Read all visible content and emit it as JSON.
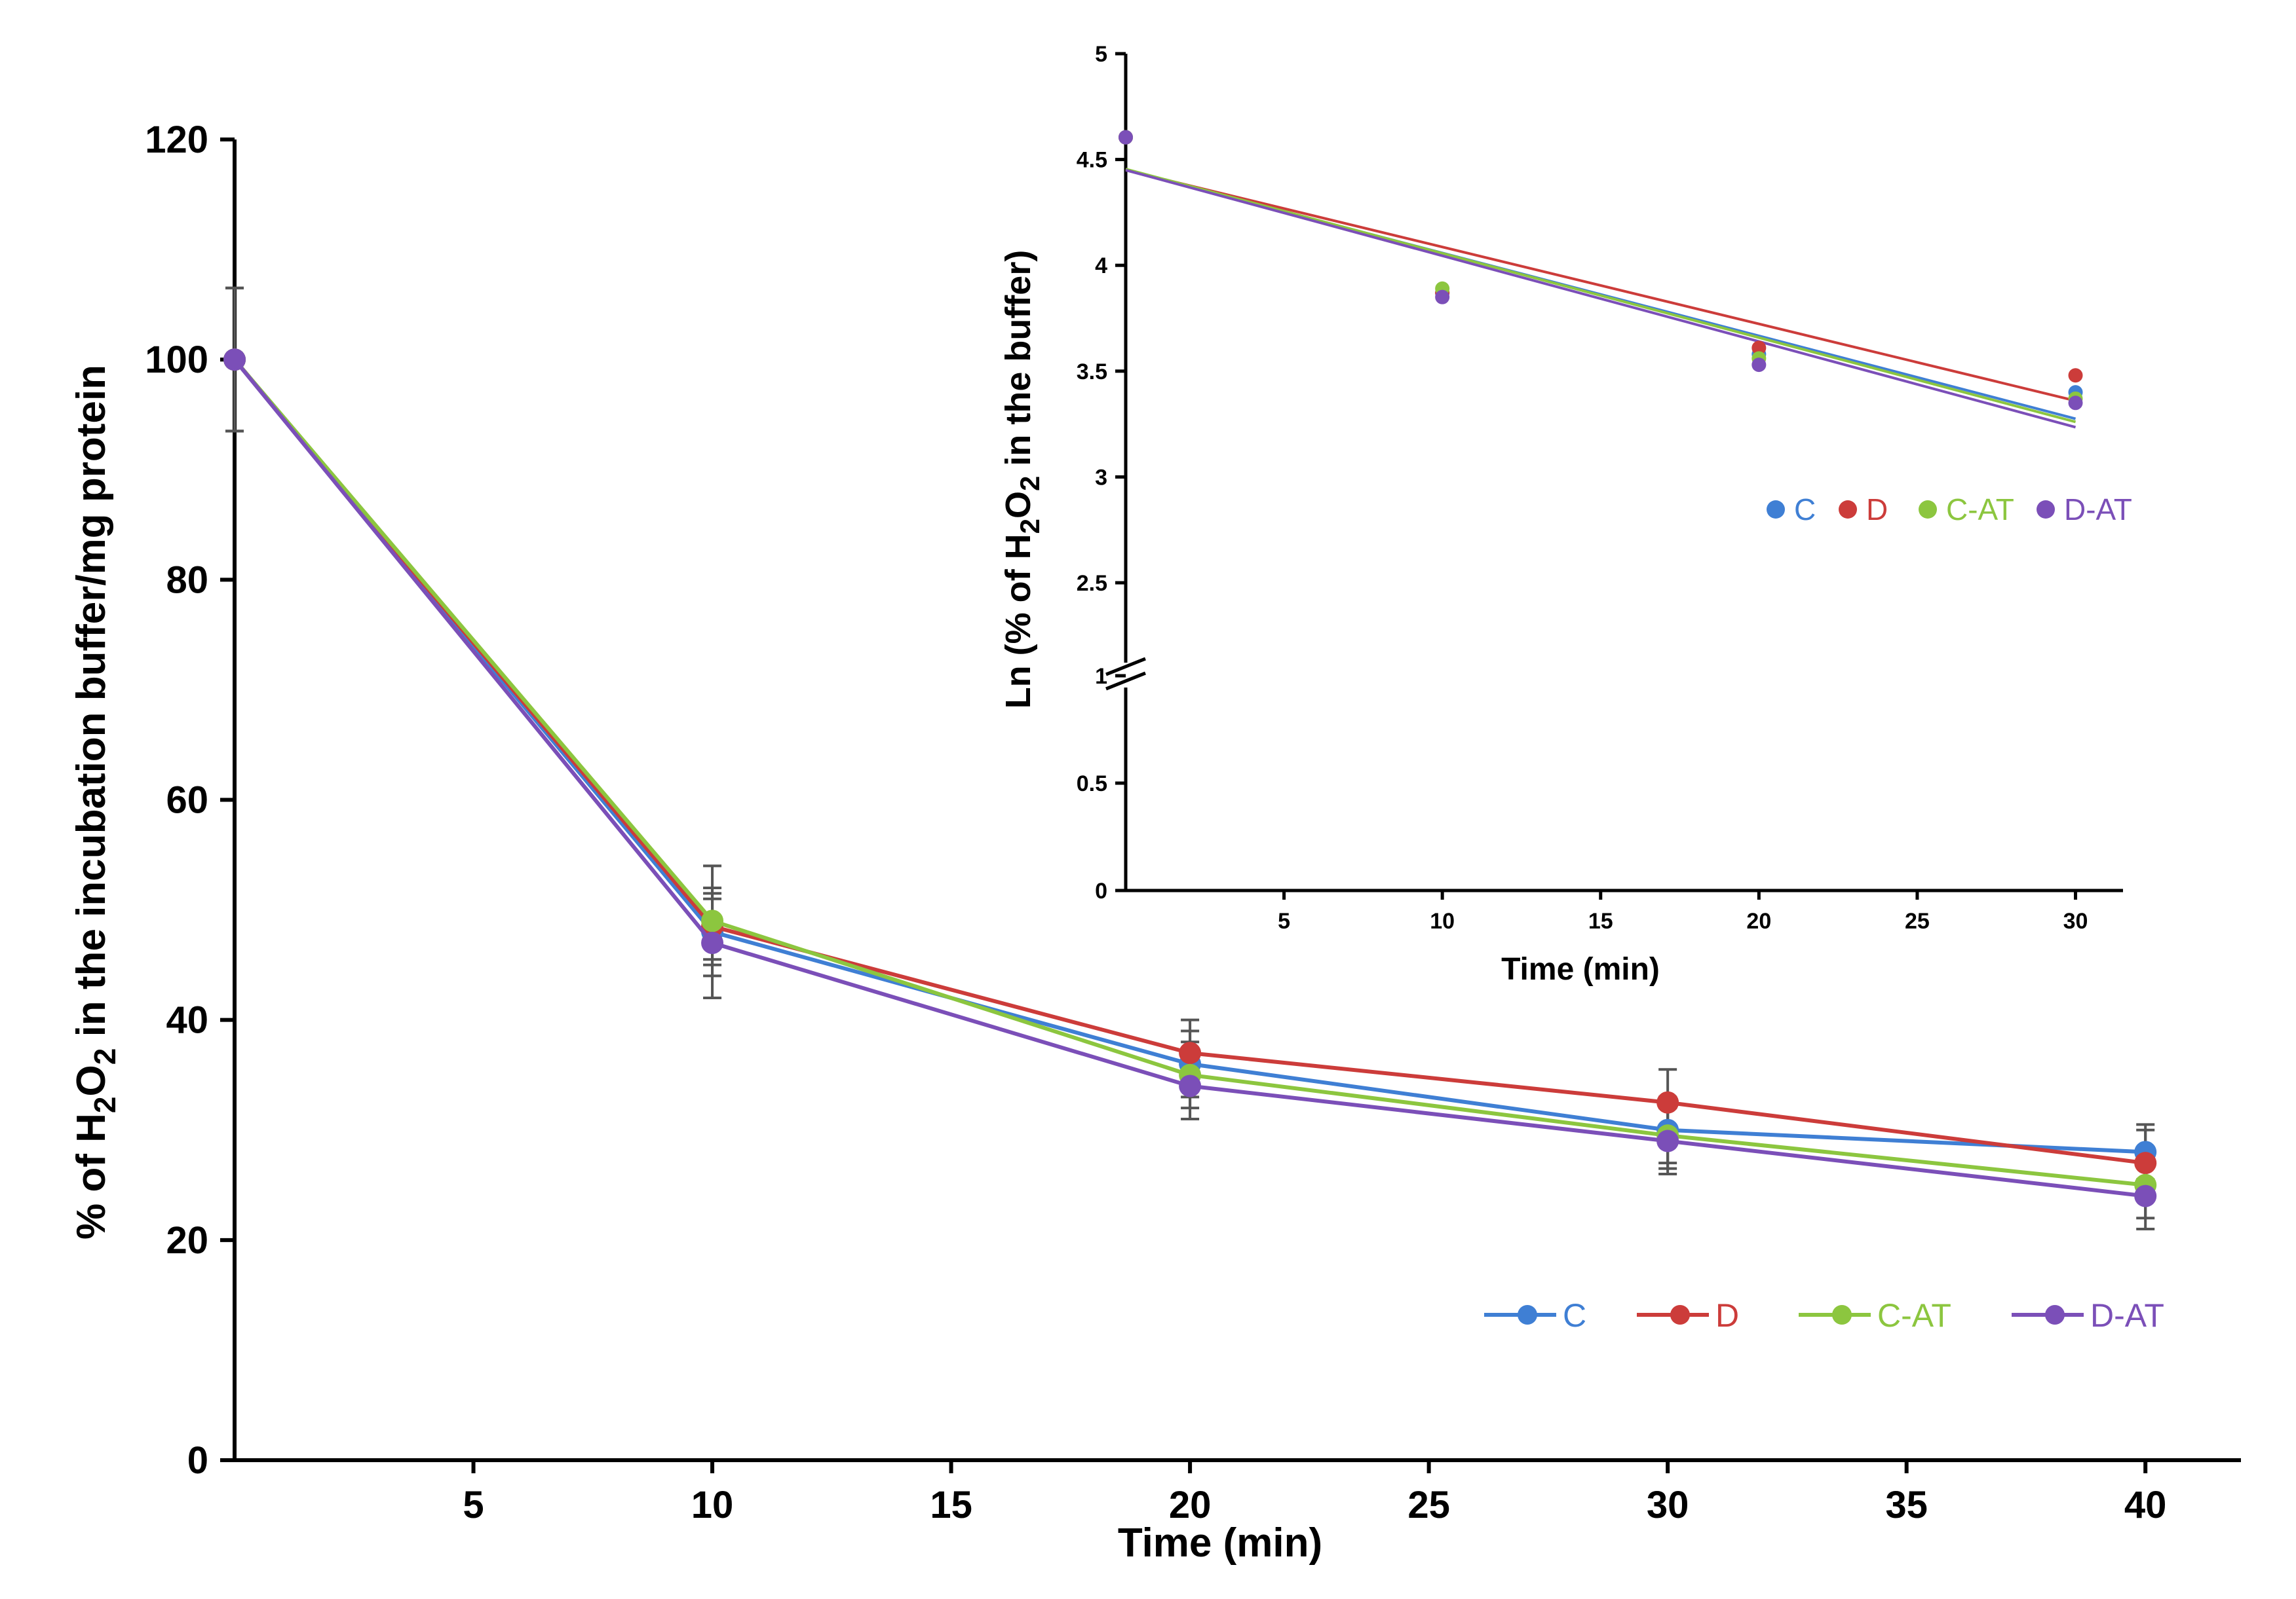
{
  "chart_data": [
    {
      "id": "main",
      "type": "line",
      "title": "",
      "xlabel": "Time (min)",
      "ylabel_parts": [
        "% of H",
        "2",
        "O",
        "2",
        " in the incubation buffer/mg protein"
      ],
      "xlim": [
        0,
        42
      ],
      "ylim": [
        0,
        120
      ],
      "xticks": [
        5,
        10,
        15,
        20,
        25,
        30,
        35,
        40
      ],
      "yticks": [
        0,
        20,
        40,
        60,
        80,
        100,
        120
      ],
      "x": [
        0,
        10,
        20,
        30,
        40
      ],
      "legend_position": "bottom-right",
      "series": [
        {
          "name": "C",
          "color": "#3f7fd4",
          "values": [
            100,
            48,
            36,
            30,
            28
          ],
          "errors": [
            6.5,
            3,
            3,
            3,
            2.5
          ]
        },
        {
          "name": "D",
          "color": "#cc3c3a",
          "values": [
            100,
            48.5,
            37,
            32.5,
            27
          ],
          "errors": [
            6.5,
            3,
            3,
            3,
            3
          ]
        },
        {
          "name": "C-AT",
          "color": "#8cc63f",
          "values": [
            100,
            49,
            35,
            29.5,
            25
          ],
          "errors": [
            6.5,
            5,
            3,
            3,
            3
          ]
        },
        {
          "name": "D-AT",
          "color": "#7b4fb8",
          "values": [
            100,
            47,
            34,
            29,
            24
          ],
          "errors": [
            6.5,
            5,
            3,
            3,
            3
          ]
        }
      ]
    },
    {
      "id": "inset",
      "type": "scatter",
      "title": "",
      "xlabel": "Time (min)",
      "ylabel_parts": [
        "Ln (% of H",
        "2",
        "O",
        "2",
        " in the buffer)"
      ],
      "xlim": [
        0,
        31.5
      ],
      "xticks": [
        5,
        10,
        15,
        20,
        25,
        30
      ],
      "yticks_lower": [
        0,
        0.5,
        1
      ],
      "yticks_upper": [
        2.5,
        3,
        3.5,
        4,
        4.5,
        5
      ],
      "axis_break": [
        1,
        2.25
      ],
      "x": [
        0,
        10,
        20,
        30
      ],
      "legend_position": "center-right",
      "series": [
        {
          "name": "C",
          "color": "#3f7fd4",
          "values": [
            4.605,
            3.87,
            3.58,
            3.4
          ],
          "trend": [
            4.45,
            3.275
          ]
        },
        {
          "name": "D",
          "color": "#cc3c3a",
          "values": [
            4.605,
            3.87,
            3.61,
            3.48
          ],
          "trend": [
            4.45,
            3.36
          ]
        },
        {
          "name": "C-AT",
          "color": "#8cc63f",
          "values": [
            4.605,
            3.89,
            3.56,
            3.37
          ],
          "trend": [
            4.455,
            3.26
          ]
        },
        {
          "name": "D-AT",
          "color": "#7b4fb8",
          "values": [
            4.605,
            3.85,
            3.53,
            3.35
          ],
          "trend": [
            4.45,
            3.235
          ]
        }
      ]
    }
  ]
}
